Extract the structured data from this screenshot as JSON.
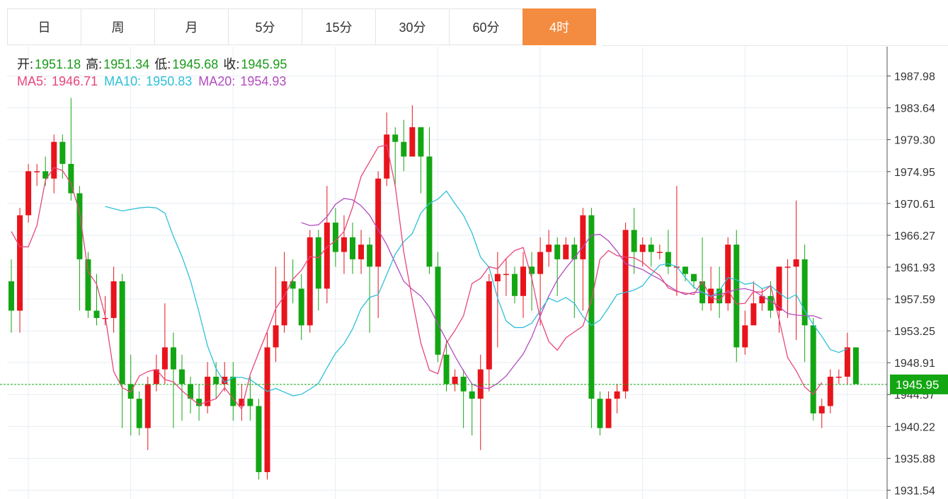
{
  "tabs": [
    {
      "label": "日",
      "active": false
    },
    {
      "label": "周",
      "active": false
    },
    {
      "label": "月",
      "active": false
    },
    {
      "label": "5分",
      "active": false
    },
    {
      "label": "15分",
      "active": false
    },
    {
      "label": "30分",
      "active": false
    },
    {
      "label": "60分",
      "active": false
    },
    {
      "label": "4时",
      "active": true
    }
  ],
  "ohlc": {
    "open_label": "开:",
    "open": "1951.18",
    "high_label": "高:",
    "high": "1951.34",
    "low_label": "低:",
    "low": "1945.68",
    "close_label": "收:",
    "close": "1945.95"
  },
  "ma": {
    "ma5_label": "MA5:",
    "ma5": "1946.71",
    "ma10_label": "MA10:",
    "ma10": "1950.83",
    "ma20_label": "MA20:",
    "ma20": "1954.93"
  },
  "colors": {
    "up": "#e8141c",
    "down": "#13a613",
    "ma5": "#e8457a",
    "ma10": "#2ec0d8",
    "ma20": "#b34cc0",
    "accent": "#f38c40"
  },
  "chart_data": {
    "type": "candlestick",
    "y_ticks": [
      "1987.98",
      "1983.64",
      "1979.30",
      "1974.95",
      "1970.61",
      "1966.27",
      "1961.93",
      "1957.59",
      "1953.25",
      "1948.91",
      "1944.57",
      "1940.22",
      "1935.88",
      "1931.54"
    ],
    "ylim": [
      1931.54,
      1987.98
    ],
    "current_price": "1945.95",
    "grid": true,
    "candles": [
      [
        1960,
        1956,
        1963,
        1953
      ],
      [
        1956,
        1969,
        1970,
        1953
      ],
      [
        1969,
        1975,
        1976,
        1968
      ],
      [
        1975,
        1975,
        1976,
        1973
      ],
      [
        1975,
        1974,
        1977,
        1973
      ],
      [
        1974,
        1979,
        1980,
        1972
      ],
      [
        1979,
        1976,
        1980,
        1974
      ],
      [
        1976,
        1972,
        1985,
        1971
      ],
      [
        1972,
        1963,
        1973,
        1956
      ],
      [
        1963,
        1956,
        1964,
        1955
      ],
      [
        1956,
        1955,
        1961,
        1954
      ],
      [
        1955,
        1955,
        1958,
        1954
      ],
      [
        1955,
        1960,
        1962,
        1953
      ],
      [
        1960,
        1946,
        1961,
        1940
      ],
      [
        1946,
        1944,
        1950,
        1939
      ],
      [
        1944,
        1940,
        1945,
        1939
      ],
      [
        1940,
        1946,
        1947,
        1937
      ],
      [
        1946,
        1948,
        1950,
        1945
      ],
      [
        1948,
        1951,
        1957,
        1946
      ],
      [
        1951,
        1948,
        1953,
        1940
      ],
      [
        1948,
        1946,
        1950,
        1941
      ],
      [
        1946,
        1944,
        1947,
        1942
      ],
      [
        1944,
        1943,
        1946,
        1941
      ],
      [
        1943,
        1947,
        1949,
        1942
      ],
      [
        1947,
        1946,
        1949,
        1944
      ],
      [
        1946,
        1947,
        1949,
        1945
      ],
      [
        1947,
        1943,
        1949,
        1941
      ],
      [
        1943,
        1944,
        1946,
        1941
      ],
      [
        1944,
        1943,
        1947,
        1941
      ],
      [
        1943,
        1934,
        1944,
        1933
      ],
      [
        1934,
        1951,
        1953,
        1933
      ],
      [
        1951,
        1954,
        1962,
        1949
      ],
      [
        1954,
        1960,
        1964,
        1953
      ],
      [
        1960,
        1959,
        1963,
        1957
      ],
      [
        1959,
        1954,
        1961,
        1952
      ],
      [
        1954,
        1966,
        1967,
        1953
      ],
      [
        1966,
        1959,
        1967,
        1956
      ],
      [
        1959,
        1968,
        1973,
        1957
      ],
      [
        1968,
        1964,
        1970,
        1962
      ],
      [
        1964,
        1966,
        1969,
        1961
      ],
      [
        1966,
        1963,
        1968,
        1961
      ],
      [
        1963,
        1965,
        1967,
        1961
      ],
      [
        1965,
        1962,
        1966,
        1953
      ],
      [
        1962,
        1974,
        1975,
        1955
      ],
      [
        1974,
        1980,
        1983,
        1973
      ],
      [
        1980,
        1979,
        1981,
        1973
      ],
      [
        1979,
        1977,
        1982,
        1975
      ],
      [
        1977,
        1981,
        1984,
        1978
      ],
      [
        1981,
        1977,
        1981,
        1972
      ],
      [
        1977,
        1962,
        1981,
        1961
      ],
      [
        1962,
        1950,
        1964,
        1949
      ],
      [
        1950,
        1946,
        1952,
        1945
      ],
      [
        1946,
        1947,
        1948,
        1945
      ],
      [
        1947,
        1945,
        1948,
        1940
      ],
      [
        1945,
        1944,
        1946,
        1939
      ],
      [
        1944,
        1948,
        1950,
        1937
      ],
      [
        1948,
        1960,
        1961,
        1945
      ],
      [
        1960,
        1961,
        1964,
        1951
      ],
      [
        1961,
        1961,
        1963,
        1958
      ],
      [
        1961,
        1958,
        1962,
        1957
      ],
      [
        1958,
        1962,
        1964,
        1955
      ],
      [
        1962,
        1961,
        1964,
        1956
      ],
      [
        1961,
        1964,
        1966,
        1954
      ],
      [
        1964,
        1965,
        1967,
        1962
      ],
      [
        1965,
        1963,
        1966,
        1958
      ],
      [
        1963,
        1965,
        1966,
        1963
      ],
      [
        1965,
        1963,
        1966,
        1955
      ],
      [
        1963,
        1969,
        1970,
        1956
      ],
      [
        1969,
        1944,
        1970,
        1940
      ],
      [
        1944,
        1940,
        1945,
        1939
      ],
      [
        1940,
        1944,
        1945,
        1940
      ],
      [
        1944,
        1945,
        1946,
        1942
      ],
      [
        1945,
        1967,
        1968,
        1944
      ],
      [
        1967,
        1964,
        1970,
        1961
      ],
      [
        1964,
        1965,
        1966,
        1962
      ],
      [
        1965,
        1964,
        1966,
        1962
      ],
      [
        1964,
        1964,
        1965,
        1963
      ],
      [
        1964,
        1962,
        1967,
        1961
      ],
      [
        1962,
        1962,
        1973,
        1958
      ],
      [
        1962,
        1961,
        1962,
        1960
      ],
      [
        1961,
        1960,
        1961,
        1959
      ],
      [
        1960,
        1957,
        1966,
        1956
      ],
      [
        1957,
        1959,
        1962,
        1956
      ],
      [
        1959,
        1957,
        1962,
        1955
      ],
      [
        1957,
        1965,
        1966,
        1956
      ],
      [
        1965,
        1951,
        1967,
        1949
      ],
      [
        1951,
        1954,
        1956,
        1950
      ],
      [
        1954,
        1957,
        1960,
        1956
      ],
      [
        1957,
        1958,
        1959,
        1956
      ],
      [
        1958,
        1956,
        1960,
        1955
      ],
      [
        1956,
        1962,
        1962,
        1953
      ],
      [
        1962,
        1962,
        1963,
        1955
      ],
      [
        1962,
        1963,
        1971,
        1952
      ],
      [
        1963,
        1954,
        1965,
        1949
      ],
      [
        1954,
        1942,
        1955,
        1941
      ],
      [
        1942,
        1943,
        1944,
        1940
      ],
      [
        1943,
        1947,
        1948,
        1942
      ],
      [
        1947,
        1947,
        1948,
        1946
      ],
      [
        1947,
        1951,
        1953,
        1946
      ],
      [
        1951,
        1946,
        1951,
        1946
      ]
    ],
    "ma5": [
      1966.8,
      1964.7,
      1964.7,
      1967.6,
      1973.8,
      1975.5,
      1975.1,
      1973.3,
      1969.4,
      1961.3,
      1959.6,
      1955.3,
      1947.7,
      1945.5,
      1944.9,
      1947.1,
      1947.7,
      1948.0,
      1946.6,
      1946.3,
      1945.1,
      1944.1,
      1943.2,
      1943.6,
      1944.0,
      1945.5,
      1944.0,
      1942.6,
      1947.3,
      1950.3,
      1953.2,
      1956.3,
      1958.0,
      1960.3,
      1961.5,
      1963.4,
      1963.2,
      1964.7,
      1965.5,
      1966.8,
      1970.1,
      1974.3,
      1976.3,
      1978.3,
      1978.6,
      1973.0,
      1964.0,
      1957.5,
      1951.6,
      1947.9,
      1947.4,
      1951.6,
      1953.3,
      1955.3,
      1959.7,
      1960.4,
      1962.0,
      1961.7,
      1963.1,
      1964.2,
      1964.6,
      1960.4,
      1954.9,
      1951.8,
      1950.6,
      1952.3,
      1953.1,
      1953.9,
      1957.4,
      1963.0,
      1964.2,
      1963.5,
      1963.3,
      1963.2,
      1962.6,
      1961.6,
      1960.8,
      1959.1,
      1958.6,
      1958.4,
      1958.2,
      1960.0,
      1957.8,
      1957.4,
      1958.8,
      1956.9,
      1957.0,
      1958.6,
      1958.5,
      1959.4,
      1954.8,
      1949.6,
      1947.8,
      1945.6,
      1944.6,
      1946.2
    ],
    "ma10": [
      1970.2,
      1969.9,
      1969.6,
      1969.8,
      1970.0,
      1970.1,
      1970.0,
      1969.3,
      1966.1,
      1963.4,
      1960.1,
      1955.8,
      1951.2,
      1948.1,
      1946.2,
      1946.9,
      1946.9,
      1946.6,
      1945.8,
      1945.0,
      1945.4,
      1944.9,
      1944.4,
      1944.6,
      1945.3,
      1946.1,
      1948.2,
      1950.2,
      1951.5,
      1953.5,
      1956.3,
      1957.8,
      1958.2,
      1960.9,
      1963.7,
      1965.4,
      1966.5,
      1969.3,
      1970.6,
      1971.2,
      1972.3,
      1970.6,
      1969.0,
      1966.6,
      1963.3,
      1961.9,
      1957.7,
      1954.6,
      1953.7,
      1953.7,
      1954.3,
      1956.0,
      1957.7,
      1957.2,
      1957.8,
      1957.0,
      1955.2,
      1954.0,
      1954.7,
      1956.4,
      1958.2,
      1958.5,
      1958.8,
      1959.4,
      1960.9,
      1962.2,
      1962.4,
      1962.0,
      1960.5,
      1959.2,
      1958.5,
      1957.9,
      1958.7,
      1960.5,
      1960.2,
      1959.6,
      1959.8,
      1959.0,
      1959.4,
      1958.4,
      1957.6,
      1958.2,
      1956.0,
      1954.1,
      1952.5,
      1950.7,
      1950.3,
      1950.8
    ],
    "ma20": [
      1968.0,
      1967.6,
      1967.7,
      1968.8,
      1970.5,
      1971.3,
      1971.1,
      1970.3,
      1969.0,
      1967.0,
      1965.0,
      1962.5,
      1960.0,
      1958.9,
      1958.0,
      1956.5,
      1954.2,
      1952.0,
      1949.8,
      1947.8,
      1946.0,
      1945.5,
      1945.4,
      1946.1,
      1947.1,
      1948.6,
      1950.1,
      1952.4,
      1955.3,
      1958.0,
      1960.2,
      1961.8,
      1963.2,
      1964.7,
      1966.3,
      1966.4,
      1965.5,
      1964.1,
      1962.4,
      1962.0,
      1961.6,
      1960.9,
      1960.3,
      1959.4,
      1958.7,
      1958.2,
      1958.5,
      1958.5,
      1958.0,
      1958.2,
      1958.5,
      1958.9,
      1959.0,
      1958.7,
      1958.0,
      1957.3,
      1956.5,
      1955.6,
      1955.4,
      1955.3,
      1955.3,
      1954.9
    ],
    "ma10_start": 11,
    "ma20_start": 34
  }
}
